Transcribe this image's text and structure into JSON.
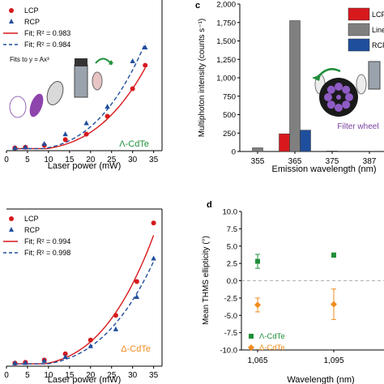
{
  "panels": {
    "c": {
      "letter": "c"
    },
    "d": {
      "letter": "d"
    }
  },
  "colors": {
    "lcp": "#d7191c",
    "rcp": "#1f4e9c",
    "linear": "#7f7f7f",
    "green": "#1f8f3a",
    "orange": "#f28c1e",
    "purple": "#7a3fa0"
  },
  "chart_data": [
    {
      "id": "a",
      "type": "scatter",
      "annotation": "Λ-CdTe",
      "fit_note": "Fits to y = Ax³",
      "xlabel": "Laser power (mW)",
      "xlim": [
        0,
        37
      ],
      "xticks": [
        0,
        5,
        10,
        15,
        20,
        25,
        30,
        35
      ],
      "legend": {
        "position": "top-left",
        "entries": [
          "LCP",
          "RCP",
          "Fit; R² = 0.983",
          "Fit; R² = 0.984"
        ]
      },
      "series": [
        {
          "name": "LCP",
          "marker": "circle",
          "x": [
            2,
            4.5,
            9,
            14,
            19,
            24,
            30,
            33
          ],
          "y": [
            0.02,
            0.025,
            0.04,
            0.08,
            0.12,
            0.25,
            0.45,
            0.62
          ]
        },
        {
          "name": "RCP",
          "marker": "triangle",
          "x": [
            2,
            4.5,
            9,
            14,
            19,
            24,
            30,
            33
          ],
          "y": [
            0.02,
            0.025,
            0.05,
            0.12,
            0.2,
            0.32,
            0.65,
            0.75
          ]
        },
        {
          "name": "Fit; R² = 0.983",
          "style": "solid",
          "ymax": 0.6
        },
        {
          "name": "Fit; R² = 0.984",
          "style": "dashed",
          "ymax": 0.78
        }
      ]
    },
    {
      "id": "b",
      "type": "scatter",
      "annotation": "Δ-CdTe",
      "xlabel": "Laser power (mW)",
      "xlim": [
        0,
        37
      ],
      "xticks": [
        0,
        5,
        10,
        15,
        20,
        25,
        30,
        35
      ],
      "legend": {
        "position": "top-left",
        "entries": [
          "LCP",
          "RCP",
          "Fit; R² = 0.994",
          "Fit; R² = 0.998"
        ]
      },
      "series": [
        {
          "name": "LCP",
          "marker": "circle",
          "x": [
            2,
            4.5,
            9,
            14,
            20,
            26,
            31,
            35
          ],
          "y": [
            0.02,
            0.025,
            0.04,
            0.08,
            0.17,
            0.33,
            0.55,
            0.93
          ]
        },
        {
          "name": "RCP",
          "marker": "triangle",
          "x": [
            2,
            4.5,
            9,
            14,
            20,
            26,
            31,
            35
          ],
          "y": [
            0.02,
            0.022,
            0.035,
            0.06,
            0.13,
            0.24,
            0.45,
            0.7
          ]
        },
        {
          "name": "Fit; R² = 0.994",
          "style": "solid",
          "ymax": 0.85
        },
        {
          "name": "Fit; R² = 0.998",
          "style": "dashed",
          "ymax": 0.68
        }
      ]
    },
    {
      "id": "c",
      "type": "bar",
      "ylabel": "Multiphoton intensity (counts s⁻¹)",
      "xlabel": "Emission wavelength (nm)",
      "ylim": [
        0,
        2000
      ],
      "yticks": [
        0,
        250,
        500,
        750,
        1000,
        1250,
        1500,
        1750,
        2000
      ],
      "categories": [
        "355",
        "365",
        "375",
        "387"
      ],
      "series": [
        {
          "name": "LCP",
          "values": [
            0,
            240,
            0,
            0
          ]
        },
        {
          "name": "Linear",
          "values": [
            50,
            1775,
            8,
            0
          ]
        },
        {
          "name": "RCP",
          "values": [
            0,
            290,
            0,
            0
          ]
        }
      ],
      "inset_label": "Filter wheel"
    },
    {
      "id": "d",
      "type": "scatter",
      "ylabel": "Mean THMS ellipticity (°)",
      "xlabel": "Wavelength (nm)",
      "ylim": [
        -10,
        10
      ],
      "yticks": [
        10,
        7.5,
        5,
        2.5,
        0,
        -2.5,
        -5,
        -7.5,
        -10
      ],
      "xticks": [
        "1,065",
        "1,095"
      ],
      "legend": {
        "position": "bottom-left",
        "entries": [
          "Λ-CdTe",
          "Δ-CdTe"
        ]
      },
      "series": [
        {
          "name": "Λ-CdTe",
          "marker": "square",
          "x": [
            1065,
            1095
          ],
          "y": [
            2.8,
            3.7
          ],
          "err": [
            1.0,
            0.3
          ]
        },
        {
          "name": "Δ-CdTe",
          "marker": "diamond",
          "x": [
            1065,
            1095
          ],
          "y": [
            -3.5,
            -3.4
          ],
          "err": [
            1.0,
            2.2
          ]
        }
      ]
    }
  ]
}
